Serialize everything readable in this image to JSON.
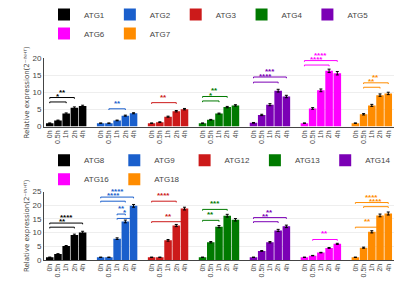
{
  "chart_data": [
    {
      "type": "bar",
      "ylabel": "Relative expression(2⁻ᴵᴺᴴᵀ)",
      "categories": [
        "0h",
        "0.5h",
        "1h",
        "2h",
        "4h"
      ],
      "series": [
        {
          "name": "ATG1",
          "color": "#000000",
          "values": [
            1.0,
            1.8,
            3.8,
            5.5,
            6.0
          ],
          "errors": [
            0.05,
            0.1,
            0.2,
            0.25,
            0.25
          ]
        },
        {
          "name": "ATG2",
          "color": "#1A5FCC",
          "values": [
            1.0,
            1.0,
            1.8,
            3.2,
            3.9
          ],
          "errors": [
            0.05,
            0.05,
            0.1,
            0.15,
            0.15
          ]
        },
        {
          "name": "ATG3",
          "color": "#CC1A1A",
          "values": [
            1.0,
            1.3,
            2.9,
            4.5,
            5.1
          ],
          "errors": [
            0.05,
            0.1,
            0.15,
            0.2,
            0.2
          ]
        },
        {
          "name": "ATG4",
          "color": "#007A00",
          "values": [
            1.0,
            2.0,
            3.8,
            5.7,
            6.2
          ],
          "errors": [
            0.05,
            0.1,
            0.15,
            0.2,
            0.2
          ]
        },
        {
          "name": "ATG5",
          "color": "#7B00B5",
          "values": [
            1.1,
            3.4,
            6.4,
            10.5,
            8.8
          ],
          "errors": [
            0.1,
            0.2,
            0.3,
            0.4,
            0.35
          ]
        },
        {
          "name": "ATG6",
          "color": "#FF00FF",
          "values": [
            1.0,
            5.3,
            10.6,
            16.3,
            15.6
          ],
          "errors": [
            0.05,
            0.25,
            0.4,
            0.5,
            0.5
          ]
        },
        {
          "name": "ATG7",
          "color": "#FF8C00",
          "values": [
            1.0,
            3.6,
            6.2,
            9.2,
            9.7
          ],
          "errors": [
            0.05,
            0.2,
            0.3,
            0.35,
            0.35
          ]
        }
      ],
      "ylim": [
        0,
        20
      ],
      "yticks": [
        0,
        5,
        10,
        15,
        20
      ],
      "grid": true,
      "legend": "upper left",
      "annotations": [
        {
          "series": "ATG1",
          "from": "0h",
          "to": "1h",
          "label": "*",
          "color": "#000000",
          "y": 7.2
        },
        {
          "series": "ATG1",
          "from": "0h",
          "to": "2h",
          "label": "**",
          "color": "#000000",
          "y": 8.5
        },
        {
          "series": "ATG2",
          "from": "0.5h",
          "to": "2h",
          "label": "**",
          "color": "#1A5FCC",
          "y": 5.2
        },
        {
          "series": "ATG3",
          "from": "0h",
          "to": "2h",
          "label": "**",
          "color": "#CC1A1A",
          "y": 7.0
        },
        {
          "series": "ATG4",
          "from": "0h",
          "to": "1h",
          "label": "*",
          "color": "#007A00",
          "y": 7.5
        },
        {
          "series": "ATG4",
          "from": "0h",
          "to": "2h",
          "label": "**",
          "color": "#007A00",
          "y": 8.8
        },
        {
          "series": "ATG5",
          "from": "0h",
          "to": "2h",
          "label": "****",
          "color": "#7B00B5",
          "y": 13.0
        },
        {
          "series": "ATG5",
          "from": "0h",
          "to": "4h",
          "label": "***",
          "color": "#7B00B5",
          "y": 14.5
        },
        {
          "series": "ATG6",
          "from": "0h",
          "to": "2h",
          "label": "****",
          "color": "#FF00FF",
          "y": 18.0
        },
        {
          "series": "ATG6",
          "from": "0h",
          "to": "4h",
          "label": "****",
          "color": "#FF00FF",
          "y": 19.3
        },
        {
          "series": "ATG7",
          "from": "0.5h",
          "to": "2h",
          "label": "**",
          "color": "#FF8C00",
          "y": 11.5
        },
        {
          "series": "ATG7",
          "from": "0.5h",
          "to": "4h",
          "label": "**",
          "color": "#FF8C00",
          "y": 12.8
        }
      ]
    },
    {
      "type": "bar",
      "ylabel": "Relative expression(2⁻ᴵᴺᴴᵀ)",
      "categories": [
        "0h",
        "0.5h",
        "1h",
        "2h",
        "4h"
      ],
      "series": [
        {
          "name": "ATG8",
          "color": "#000000",
          "values": [
            1.0,
            2.2,
            5.1,
            9.1,
            10.1
          ],
          "errors": [
            0.05,
            0.1,
            0.2,
            0.35,
            0.4
          ]
        },
        {
          "name": "ATG9",
          "color": "#1A5FCC",
          "values": [
            1.0,
            1.0,
            7.8,
            14.1,
            19.8
          ],
          "errors": [
            0.05,
            0.05,
            0.3,
            0.5,
            0.5
          ]
        },
        {
          "name": "ATG12",
          "color": "#CC1A1A",
          "values": [
            1.0,
            1.0,
            7.2,
            12.6,
            18.8
          ],
          "errors": [
            0.05,
            0.05,
            0.3,
            0.4,
            0.5
          ]
        },
        {
          "name": "ATG13",
          "color": "#007A00",
          "values": [
            1.0,
            6.5,
            12.2,
            16.2,
            14.7
          ],
          "errors": [
            0.05,
            0.25,
            0.4,
            0.5,
            0.45
          ]
        },
        {
          "name": "ATG14",
          "color": "#7B00B5",
          "values": [
            1.0,
            3.3,
            6.5,
            10.8,
            12.3
          ],
          "errors": [
            0.05,
            0.15,
            0.25,
            0.4,
            0.45
          ]
        },
        {
          "name": "ATG16",
          "color": "#FF00FF",
          "values": [
            1.0,
            1.6,
            2.7,
            4.4,
            5.9
          ],
          "errors": [
            0.05,
            0.08,
            0.1,
            0.15,
            0.2
          ]
        },
        {
          "name": "ATG18",
          "color": "#FF8C00",
          "values": [
            1.0,
            4.5,
            10.3,
            16.3,
            17.0
          ],
          "errors": [
            0.05,
            0.2,
            0.4,
            0.5,
            0.55
          ]
        }
      ],
      "ylim": [
        0,
        25
      ],
      "yticks": [
        0,
        5,
        10,
        15,
        20,
        25
      ],
      "grid": true,
      "legend": "upper left",
      "annotations": [
        {
          "series": "ATG8",
          "from": "0h",
          "to": "2h",
          "label": "**",
          "color": "#000000",
          "y": 12.0
        },
        {
          "series": "ATG8",
          "from": "0h",
          "to": "4h",
          "label": "****",
          "color": "#000000",
          "y": 13.5
        },
        {
          "series": "ATG9",
          "from": "1h",
          "to": "4h",
          "label": "*",
          "color": "#1A5FCC",
          "y": 15.2
        },
        {
          "series": "ATG9",
          "from": "1h",
          "to": "2h",
          "label": "**",
          "color": "#1A5FCC",
          "y": 16.8
        },
        {
          "series": "ATG9",
          "from": "0h",
          "to": "2h",
          "label": "****",
          "color": "#1A5FCC",
          "y": 21.5
        },
        {
          "series": "ATG9",
          "from": "0h",
          "to": "4h",
          "label": "****",
          "color": "#1A5FCC",
          "y": 23.0
        },
        {
          "series": "ATG12",
          "from": "0h",
          "to": "2h",
          "label": "****",
          "color": "#CC1A1A",
          "y": 21.5
        },
        {
          "series": "ATG12",
          "from": "0h",
          "to": "4h",
          "label": "**",
          "color": "#CC1A1A",
          "y": 14.0
        },
        {
          "series": "ATG13",
          "from": "0h",
          "to": "1h",
          "label": "**",
          "color": "#007A00",
          "y": 14.5
        },
        {
          "series": "ATG13",
          "from": "0h",
          "to": "2h",
          "label": "***",
          "color": "#007A00",
          "y": 18.5
        },
        {
          "series": "ATG14",
          "from": "0h",
          "to": "2h",
          "label": "**",
          "color": "#7B00B5",
          "y": 14.0
        },
        {
          "series": "ATG14",
          "from": "0h",
          "to": "4h",
          "label": "**",
          "color": "#7B00B5",
          "y": 15.5
        },
        {
          "series": "ATG16",
          "from": "0.5h",
          "to": "4h",
          "label": "**",
          "color": "#FF00FF",
          "y": 7.5
        },
        {
          "series": "ATG18",
          "from": "0h",
          "to": "2h",
          "label": "**",
          "color": "#FF8C00",
          "y": 12.0
        },
        {
          "series": "ATG18",
          "from": "0.5h",
          "to": "4h",
          "label": "****",
          "color": "#FF8C00",
          "y": 19.5
        },
        {
          "series": "ATG18",
          "from": "0h",
          "to": "4h",
          "label": "****",
          "color": "#FF8C00",
          "y": 21.0
        }
      ]
    }
  ]
}
